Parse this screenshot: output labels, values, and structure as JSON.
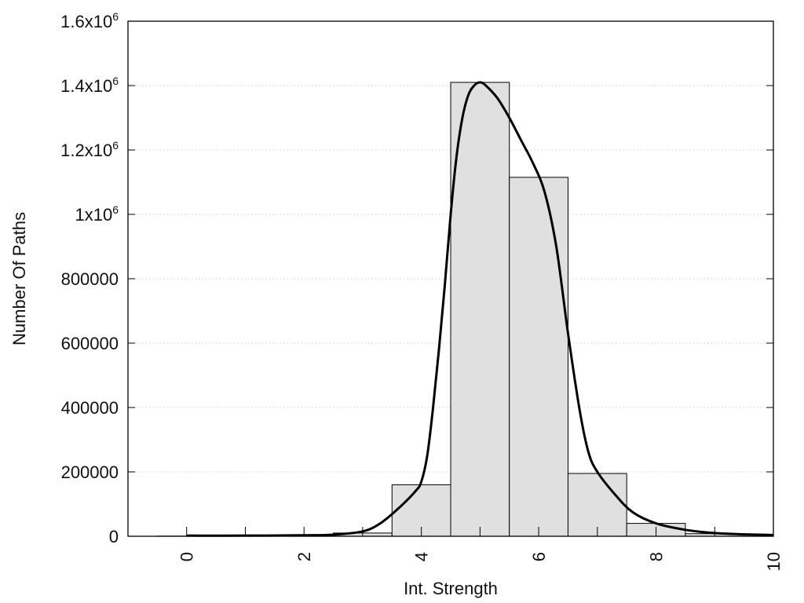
{
  "chart_data": {
    "type": "bar",
    "title": "",
    "xlabel": "Int. Strength",
    "ylabel": "Number Of Paths",
    "xlim": [
      -1,
      10
    ],
    "ylim": [
      0,
      1600000
    ],
    "grid": "horizontal-dotted",
    "legend": "none",
    "bar_width": 1,
    "x": [
      0,
      1,
      2,
      3,
      4,
      5,
      6,
      7,
      8,
      9,
      10
    ],
    "values": [
      500,
      1000,
      2000,
      10000,
      160000,
      1410000,
      1115000,
      195000,
      40000,
      8000,
      4000
    ],
    "xticks": [
      {
        "value": 0,
        "label": "0"
      },
      {
        "value": 2,
        "label": "2"
      },
      {
        "value": 4,
        "label": "4"
      },
      {
        "value": 6,
        "label": "6"
      },
      {
        "value": 8,
        "label": "8"
      },
      {
        "value": 10,
        "label": "10"
      }
    ],
    "yticks": [
      {
        "value": 0,
        "label": "0"
      },
      {
        "value": 200000,
        "label": "200000"
      },
      {
        "value": 400000,
        "label": "400000"
      },
      {
        "value": 600000,
        "label": "600000"
      },
      {
        "value": 800000,
        "label": "800000"
      },
      {
        "value": 1000000,
        "label": "1x10",
        "sup": "6"
      },
      {
        "value": 1200000,
        "label": "1.2x10",
        "sup": "6"
      },
      {
        "value": 1400000,
        "label": "1.4x10",
        "sup": "6"
      },
      {
        "value": 1600000,
        "label": "1.6x10",
        "sup": "6"
      }
    ],
    "fit_curve": {
      "x": [
        0,
        1,
        2,
        2.5,
        3,
        3.3,
        3.6,
        3.9,
        4,
        4.1,
        4.2,
        4.3,
        4.4,
        4.5,
        4.6,
        4.7,
        4.8,
        4.9,
        5,
        5.1,
        5.3,
        5.5,
        5.7,
        5.9,
        6.1,
        6.3,
        6.5,
        6.7,
        6.85,
        7,
        7.3,
        7.6,
        8,
        8.5,
        9,
        9.5,
        10
      ],
      "y": [
        2000,
        2000,
        3000,
        5000,
        15000,
        40000,
        85000,
        140000,
        170000,
        250000,
        400000,
        580000,
        780000,
        1000000,
        1180000,
        1300000,
        1370000,
        1400000,
        1410000,
        1400000,
        1360000,
        1300000,
        1230000,
        1160000,
        1070000,
        900000,
        630000,
        390000,
        260000,
        200000,
        130000,
        75000,
        40000,
        20000,
        10000,
        6000,
        4000
      ]
    },
    "colors": {
      "bar_fill": "#e0e0e0",
      "bar_stroke": "#000000",
      "curve": "#000000",
      "grid": "#bbbbbb"
    }
  }
}
